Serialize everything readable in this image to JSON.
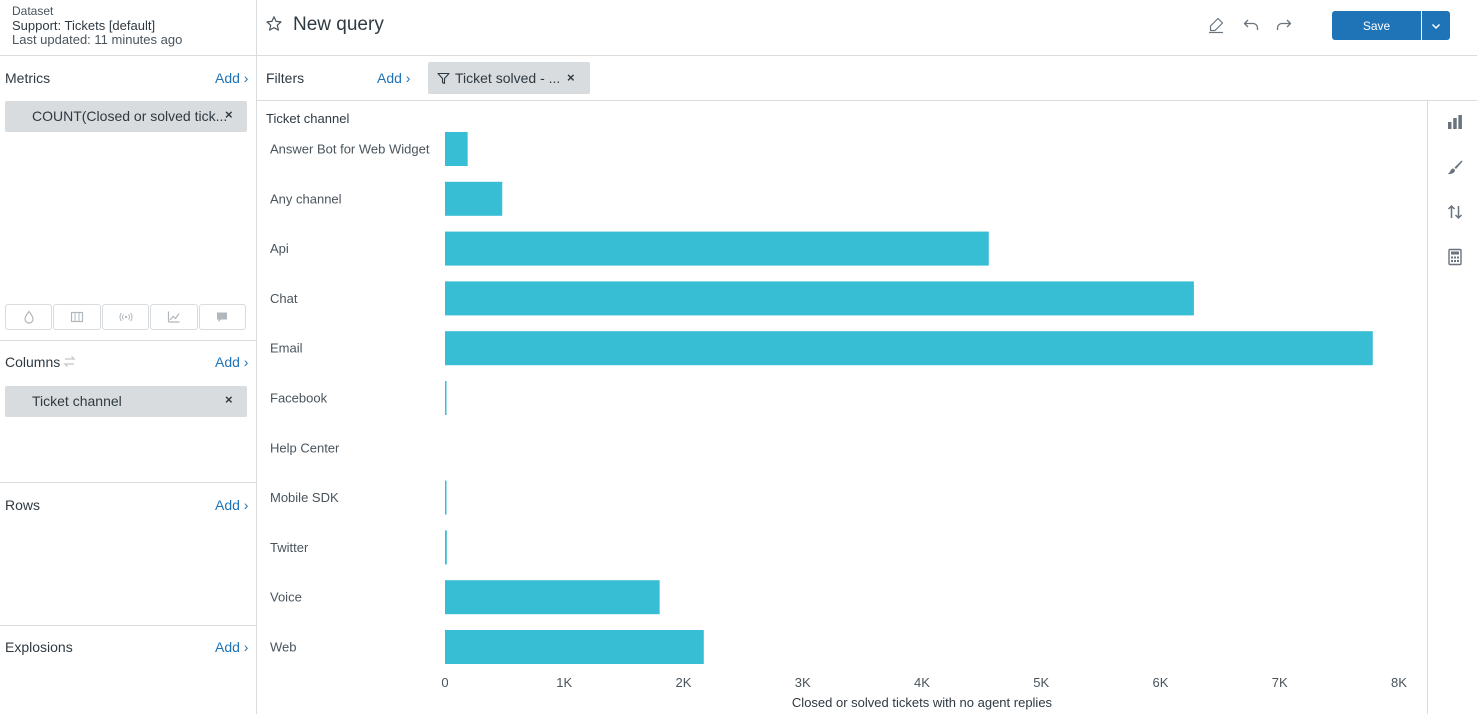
{
  "dataset": {
    "label": "Dataset",
    "name": "Support: Tickets [default]",
    "updated": "Last updated: 11 minutes ago"
  },
  "header": {
    "title": "New query",
    "save_label": "Save"
  },
  "metrics": {
    "title": "Metrics",
    "add_label": "Add ›",
    "pill": "COUNT(Closed or solved tick...",
    "remove": "×"
  },
  "columns": {
    "title": "Columns",
    "add_label": "Add ›",
    "pill": "Ticket channel",
    "remove": "×"
  },
  "rows": {
    "title": "Rows",
    "add_label": "Add ›"
  },
  "explosions": {
    "title": "Explosions",
    "add_label": "Add ›"
  },
  "filters": {
    "title": "Filters",
    "add_label": "Add ›",
    "pill": "Ticket solved - ...",
    "remove": "×"
  },
  "vis_icons": [
    "drop-icon",
    "columns-icon",
    "signal-icon",
    "area-chart-icon",
    "comment-icon"
  ],
  "right_icons": [
    "bar-chart-icon",
    "paintbrush-icon",
    "sort-icon",
    "calculator-icon"
  ],
  "colors": {
    "bar": "#37bdd4",
    "accent": "#1f73b7"
  },
  "chart_data": {
    "type": "bar",
    "orientation": "horizontal",
    "category_header": "Ticket channel",
    "categories": [
      "Answer Bot for Web Widget",
      "Any channel",
      "Api",
      "Chat",
      "Email",
      "Facebook",
      "Help Center",
      "Mobile SDK",
      "Twitter",
      "Voice",
      "Web"
    ],
    "values": [
      190,
      480,
      4560,
      6280,
      7780,
      12,
      0,
      6,
      15,
      1800,
      2170
    ],
    "xlabel": "Closed or solved tickets with no agent replies",
    "xlim": [
      0,
      8000
    ],
    "xticks": [
      "0",
      "1K",
      "2K",
      "3K",
      "4K",
      "5K",
      "6K",
      "7K",
      "8K"
    ],
    "grid": false,
    "legend": "none"
  }
}
